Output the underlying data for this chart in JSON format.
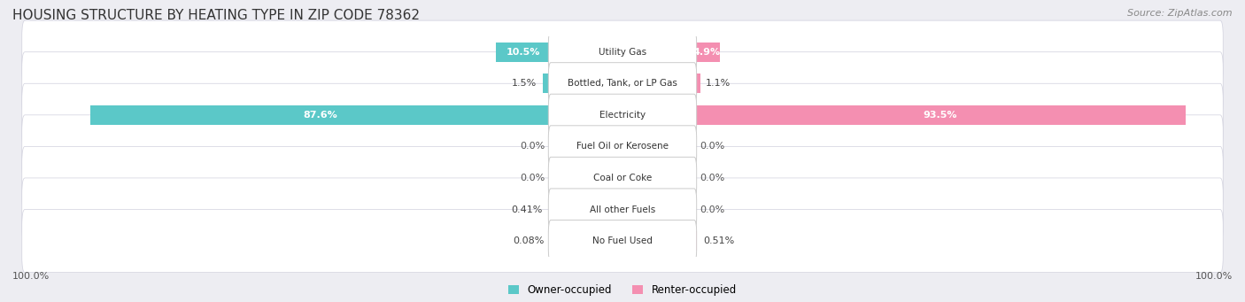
{
  "title": "HOUSING STRUCTURE BY HEATING TYPE IN ZIP CODE 78362",
  "source": "Source: ZipAtlas.com",
  "categories": [
    "Utility Gas",
    "Bottled, Tank, or LP Gas",
    "Electricity",
    "Fuel Oil or Kerosene",
    "Coal or Coke",
    "All other Fuels",
    "No Fuel Used"
  ],
  "owner_values": [
    10.5,
    1.5,
    87.6,
    0.0,
    0.0,
    0.41,
    0.08
  ],
  "renter_values": [
    4.9,
    1.1,
    93.5,
    0.0,
    0.0,
    0.0,
    0.51
  ],
  "owner_color": "#5bc8c8",
  "renter_color": "#f48fb1",
  "owner_label": "Owner-occupied",
  "renter_label": "Renter-occupied",
  "bg_color": "#ededf2",
  "max_val": 100.0,
  "title_fontsize": 11,
  "label_fontsize": 8.5,
  "tick_fontsize": 8,
  "source_fontsize": 8
}
